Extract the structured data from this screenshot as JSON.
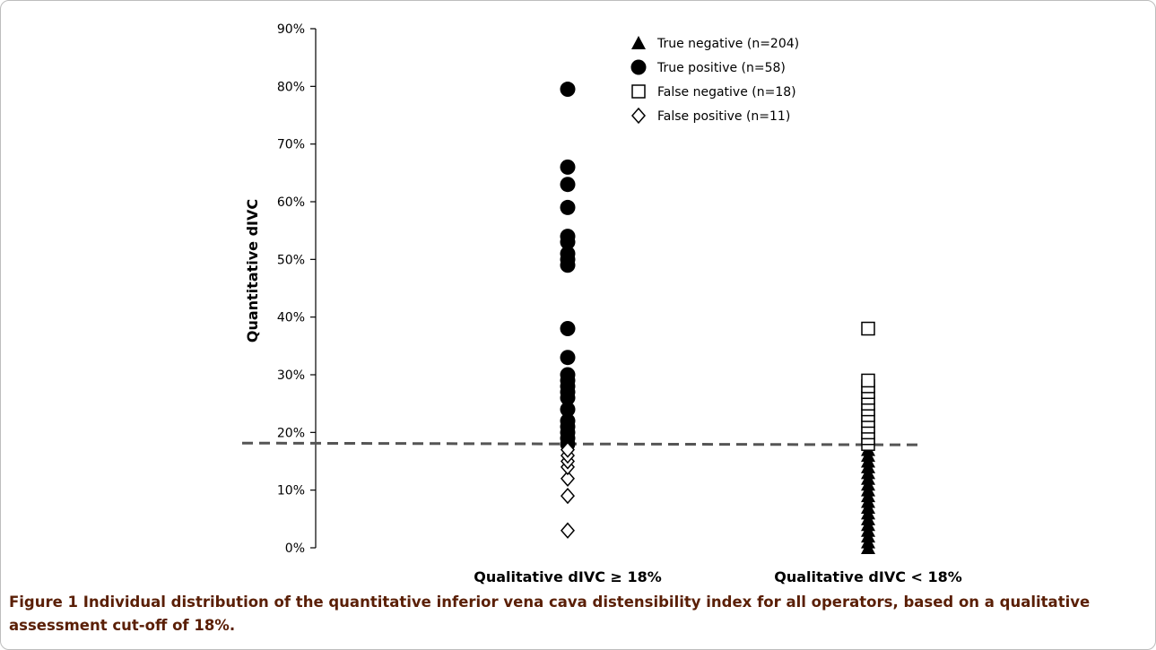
{
  "caption": {
    "label": "Figure 1",
    "text": "Individual distribution of the quantitative inferior vena cava distensibility index for all operators, based on a qualitative assessment cut-off of 18%."
  },
  "chart_data": {
    "type": "scatter",
    "ylabel": "Quantitative dIVC",
    "y_range": [
      0,
      90
    ],
    "y_ticks": [
      "0%",
      "10%",
      "20%",
      "30%",
      "40%",
      "50%",
      "60%",
      "70%",
      "80%",
      "90%"
    ],
    "categories": [
      "Qualitative dIVC ≥ 18%",
      "Qualitative dIVC < 18%"
    ],
    "threshold": 18,
    "legend_position": "top-right",
    "series": [
      {
        "name": "True negative (n=204)",
        "marker": "triangle-filled",
        "category": "Qualitative dIVC < 18%",
        "values": [
          0,
          1,
          2,
          3,
          4,
          5,
          6,
          7,
          8,
          9,
          10,
          11,
          12,
          13,
          14,
          15,
          16,
          17
        ]
      },
      {
        "name": "True positive (n=58)",
        "marker": "circle-filled",
        "category": "Qualitative dIVC ≥ 18%",
        "values": [
          18,
          19,
          20,
          21,
          22,
          24,
          26,
          27,
          28,
          29,
          30,
          33,
          38,
          49,
          50,
          51,
          53,
          54,
          59,
          63,
          66,
          79.5
        ]
      },
      {
        "name": "False negative (n=18)",
        "marker": "square-open",
        "category": "Qualitative dIVC < 18%",
        "values": [
          18,
          19,
          20,
          21,
          22,
          23,
          24,
          25,
          26,
          27,
          28,
          29,
          38
        ]
      },
      {
        "name": "False positive (n=11)",
        "marker": "diamond-open",
        "category": "Qualitative dIVC ≥ 18%",
        "values": [
          3,
          9,
          12,
          14,
          15,
          16,
          17
        ]
      }
    ]
  },
  "colors": {
    "caption": "#5a1f06",
    "marks": "#000000",
    "threshold_line": "#555555"
  }
}
